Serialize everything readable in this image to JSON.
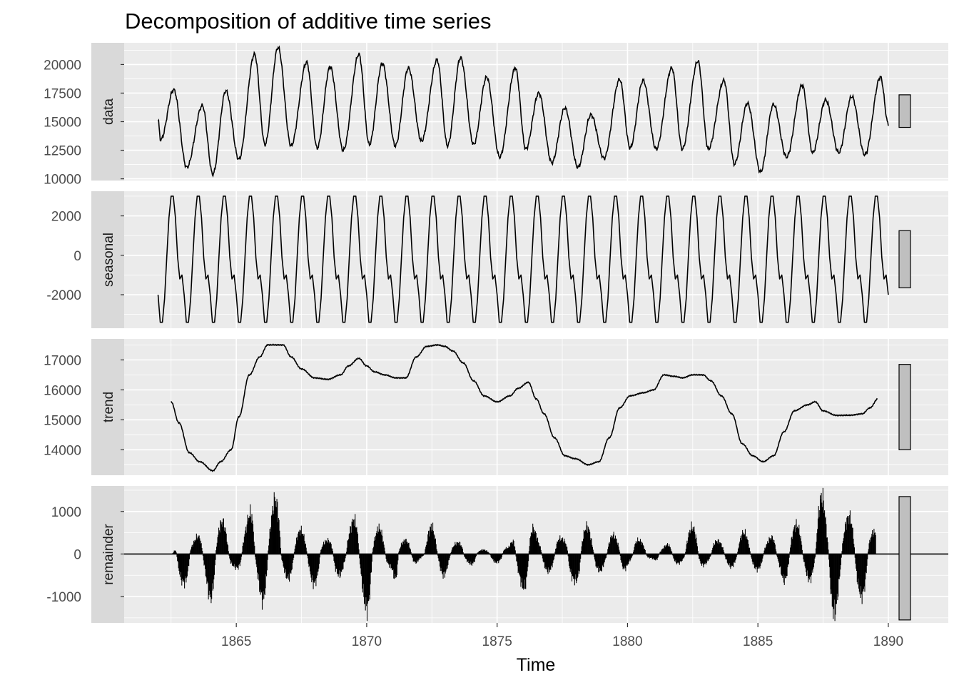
{
  "chart_data": {
    "type": "line",
    "title": "Decomposition of additive time series",
    "xlabel": "Time",
    "xlim": [
      1860.7,
      1892.3
    ],
    "x_ticks": [
      1865,
      1870,
      1875,
      1880,
      1885,
      1890
    ],
    "x_start": 1862.0,
    "x_end": 1890.0,
    "frequency": 12,
    "colors": {
      "panel": "#ebebeb",
      "strip": "#d9d9d9",
      "line": "#000000",
      "bar_fill": "#bfbfbf"
    },
    "panels": [
      {
        "name": "data",
        "label": "data",
        "ylim": [
          9850,
          21900
        ],
        "y_ticks": [
          10000,
          12500,
          15000,
          17500,
          20000
        ],
        "y_tick_labels": [
          "10000",
          "12500",
          "15000",
          "17500",
          "20000"
        ],
        "range_bar": [
          14500,
          17350
        ],
        "type": "line",
        "peaks_troughs": [
          [
            1862.0,
            15100
          ],
          [
            1862.1,
            13400
          ],
          [
            1862.6,
            17800
          ],
          [
            1863.1,
            11000
          ],
          [
            1863.7,
            16400
          ],
          [
            1864.1,
            10400
          ],
          [
            1864.6,
            17700
          ],
          [
            1865.1,
            11700
          ],
          [
            1865.7,
            20900
          ],
          [
            1866.1,
            13000
          ],
          [
            1866.6,
            21500
          ],
          [
            1867.1,
            12900
          ],
          [
            1867.7,
            20200
          ],
          [
            1868.1,
            12700
          ],
          [
            1868.6,
            19800
          ],
          [
            1869.1,
            12500
          ],
          [
            1869.7,
            20900
          ],
          [
            1870.1,
            13000
          ],
          [
            1870.6,
            20100
          ],
          [
            1871.1,
            12900
          ],
          [
            1871.6,
            19700
          ],
          [
            1872.1,
            13300
          ],
          [
            1872.7,
            20400
          ],
          [
            1873.1,
            12900
          ],
          [
            1873.6,
            20600
          ],
          [
            1874.1,
            13000
          ],
          [
            1874.6,
            18900
          ],
          [
            1875.1,
            11900
          ],
          [
            1875.7,
            19700
          ],
          [
            1876.1,
            12600
          ],
          [
            1876.6,
            17500
          ],
          [
            1877.1,
            11400
          ],
          [
            1877.6,
            16200
          ],
          [
            1878.1,
            11000
          ],
          [
            1878.6,
            15600
          ],
          [
            1879.1,
            11800
          ],
          [
            1879.7,
            18700
          ],
          [
            1880.1,
            12700
          ],
          [
            1880.6,
            18600
          ],
          [
            1881.1,
            12600
          ],
          [
            1881.7,
            19700
          ],
          [
            1882.1,
            12600
          ],
          [
            1882.7,
            20300
          ],
          [
            1883.1,
            12600
          ],
          [
            1883.7,
            18600
          ],
          [
            1884.1,
            11300
          ],
          [
            1884.6,
            16600
          ],
          [
            1885.1,
            10600
          ],
          [
            1885.6,
            16500
          ],
          [
            1886.1,
            11900
          ],
          [
            1886.7,
            18200
          ],
          [
            1887.1,
            12300
          ],
          [
            1887.6,
            16900
          ],
          [
            1888.1,
            12300
          ],
          [
            1888.6,
            17200
          ],
          [
            1889.1,
            12100
          ],
          [
            1889.7,
            18900
          ],
          [
            1890.0,
            14800
          ]
        ]
      },
      {
        "name": "seasonal",
        "label": "seasonal",
        "ylim": [
          -3700,
          3250
        ],
        "y_ticks": [
          -2000,
          0,
          2000
        ],
        "y_tick_labels": [
          "-2000",
          "0",
          "2000"
        ],
        "range_bar": [
          -1650,
          1250
        ],
        "type": "line",
        "seasonal_pattern": [
          -2000,
          -3400,
          -3400,
          -2200,
          -100,
          1900,
          3000,
          3000,
          1900,
          -100,
          -1200,
          -1000
        ]
      },
      {
        "name": "trend",
        "label": "trend",
        "ylim": [
          13150,
          17700
        ],
        "y_ticks": [
          14000,
          15000,
          16000,
          17000
        ],
        "y_tick_labels": [
          "14000",
          "15000",
          "16000",
          "17000"
        ],
        "range_bar": [
          14000,
          16850
        ],
        "type": "line",
        "trend_points": [
          [
            1862.5,
            15600
          ],
          [
            1862.8,
            14900
          ],
          [
            1863.2,
            13900
          ],
          [
            1863.6,
            13600
          ],
          [
            1864.1,
            13300
          ],
          [
            1864.4,
            13600
          ],
          [
            1864.8,
            14000
          ],
          [
            1865.1,
            15100
          ],
          [
            1865.5,
            16500
          ],
          [
            1865.9,
            17100
          ],
          [
            1866.2,
            17500
          ],
          [
            1866.8,
            17500
          ],
          [
            1867.1,
            17100
          ],
          [
            1867.5,
            16700
          ],
          [
            1868.0,
            16400
          ],
          [
            1868.5,
            16350
          ],
          [
            1869.0,
            16500
          ],
          [
            1869.3,
            16800
          ],
          [
            1869.7,
            17050
          ],
          [
            1870.0,
            16800
          ],
          [
            1870.3,
            16600
          ],
          [
            1870.7,
            16500
          ],
          [
            1871.1,
            16400
          ],
          [
            1871.5,
            16400
          ],
          [
            1871.9,
            17100
          ],
          [
            1872.3,
            17450
          ],
          [
            1872.7,
            17500
          ],
          [
            1873.0,
            17450
          ],
          [
            1873.3,
            17300
          ],
          [
            1873.7,
            16900
          ],
          [
            1874.1,
            16300
          ],
          [
            1874.5,
            15800
          ],
          [
            1875.0,
            15600
          ],
          [
            1875.5,
            15800
          ],
          [
            1875.8,
            16050
          ],
          [
            1876.2,
            16250
          ],
          [
            1876.5,
            15700
          ],
          [
            1876.8,
            15200
          ],
          [
            1877.2,
            14400
          ],
          [
            1877.6,
            13800
          ],
          [
            1878.0,
            13700
          ],
          [
            1878.5,
            13500
          ],
          [
            1878.9,
            13600
          ],
          [
            1879.3,
            14400
          ],
          [
            1879.7,
            15400
          ],
          [
            1880.1,
            15800
          ],
          [
            1880.6,
            15900
          ],
          [
            1881.0,
            16000
          ],
          [
            1881.4,
            16500
          ],
          [
            1881.8,
            16450
          ],
          [
            1882.1,
            16400
          ],
          [
            1882.5,
            16500
          ],
          [
            1882.9,
            16500
          ],
          [
            1883.2,
            16300
          ],
          [
            1883.6,
            15800
          ],
          [
            1884.0,
            15200
          ],
          [
            1884.4,
            14200
          ],
          [
            1884.8,
            13800
          ],
          [
            1885.2,
            13600
          ],
          [
            1885.6,
            13800
          ],
          [
            1886.0,
            14600
          ],
          [
            1886.4,
            15300
          ],
          [
            1886.9,
            15500
          ],
          [
            1887.2,
            15600
          ],
          [
            1887.5,
            15300
          ],
          [
            1888.0,
            15150
          ],
          [
            1888.5,
            15150
          ],
          [
            1889.0,
            15200
          ],
          [
            1889.3,
            15400
          ],
          [
            1889.6,
            15700
          ]
        ]
      },
      {
        "name": "remainder",
        "label": "remainder",
        "ylim": [
          -1620,
          1600
        ],
        "y_ticks": [
          -1000,
          0,
          1000
        ],
        "y_tick_labels": [
          "-1000",
          "0",
          "1000"
        ],
        "range_bar": [
          -1550,
          1350
        ],
        "type": "bar",
        "remainder_start": 1862.5,
        "remainder_end": 1889.5,
        "remainder_envelope": [
          [
            1862.5,
            -550,
            0
          ],
          [
            1862.9,
            -650,
            680
          ],
          [
            1863.3,
            -900,
            300
          ],
          [
            1863.7,
            -550,
            550
          ],
          [
            1864.1,
            -1150,
            750
          ],
          [
            1864.5,
            -600,
            750
          ],
          [
            1864.9,
            -300,
            300
          ],
          [
            1865.3,
            -550,
            650
          ],
          [
            1865.7,
            -600,
            1300
          ],
          [
            1866.1,
            -1200,
            800
          ],
          [
            1866.6,
            -400,
            1350
          ],
          [
            1867.1,
            -600,
            500
          ],
          [
            1867.5,
            -300,
            550
          ],
          [
            1868.0,
            -700,
            350
          ],
          [
            1868.4,
            -950,
            300
          ],
          [
            1868.9,
            -500,
            550
          ],
          [
            1869.3,
            -300,
            650
          ],
          [
            1869.7,
            -900,
            1000
          ],
          [
            1870.1,
            -1400,
            500
          ],
          [
            1870.5,
            -600,
            600
          ],
          [
            1870.9,
            -300,
            300
          ],
          [
            1871.3,
            -1400,
            300
          ],
          [
            1871.7,
            -300,
            350
          ],
          [
            1872.1,
            -100,
            300
          ],
          [
            1872.5,
            -200,
            650
          ],
          [
            1872.9,
            -500,
            300
          ],
          [
            1873.4,
            -150,
            250
          ],
          [
            1873.8,
            -200,
            400
          ],
          [
            1874.2,
            -300,
            100
          ],
          [
            1874.6,
            -150,
            100
          ],
          [
            1875.0,
            -200,
            400
          ],
          [
            1875.4,
            -300,
            150
          ],
          [
            1875.8,
            -600,
            750
          ],
          [
            1876.2,
            -1050,
            850
          ],
          [
            1876.6,
            -400,
            350
          ],
          [
            1877.1,
            -400,
            500
          ],
          [
            1877.5,
            -800,
            350
          ],
          [
            1877.9,
            -600,
            800
          ],
          [
            1878.4,
            -1050,
            650
          ],
          [
            1878.9,
            -400,
            150
          ],
          [
            1879.3,
            -200,
            450
          ],
          [
            1879.7,
            -500,
            400
          ],
          [
            1880.1,
            -200,
            500
          ],
          [
            1880.5,
            -300,
            300
          ],
          [
            1880.9,
            -100,
            200
          ],
          [
            1881.3,
            -300,
            150
          ],
          [
            1881.7,
            -250,
            300
          ],
          [
            1882.1,
            -200,
            500
          ],
          [
            1882.6,
            -400,
            650
          ],
          [
            1883.1,
            -200,
            400
          ],
          [
            1883.5,
            -200,
            300
          ],
          [
            1884.0,
            -300,
            400
          ],
          [
            1884.4,
            -200,
            500
          ],
          [
            1884.9,
            -350,
            400
          ],
          [
            1885.3,
            -400,
            300
          ],
          [
            1885.7,
            -300,
            500
          ],
          [
            1886.1,
            -700,
            600
          ],
          [
            1886.6,
            -350,
            700
          ],
          [
            1887.0,
            -600,
            1050
          ],
          [
            1887.4,
            -300,
            1350
          ],
          [
            1887.8,
            -1500,
            700
          ],
          [
            1888.3,
            -700,
            800
          ],
          [
            1888.7,
            -900,
            1000
          ],
          [
            1889.1,
            -1000,
            600
          ],
          [
            1889.5,
            -150,
            500
          ]
        ]
      }
    ]
  }
}
